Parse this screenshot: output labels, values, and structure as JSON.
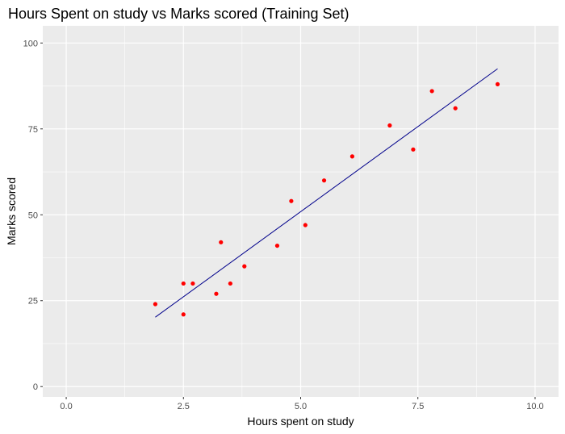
{
  "chart_data": {
    "type": "scatter",
    "title": "Hours Spent on study vs Marks scored (Training Set)",
    "xlabel": "Hours spent on study",
    "ylabel": "Marks scored",
    "xlim": [
      -0.5,
      10.5
    ],
    "ylim": [
      -3,
      105
    ],
    "x_ticks": [
      0,
      2.5,
      5,
      7.5,
      10
    ],
    "x_tick_labels": [
      "0.0",
      "2.5",
      "5.0",
      "7.5",
      "10.0"
    ],
    "y_ticks": [
      0,
      25,
      50,
      75,
      100
    ],
    "y_tick_labels": [
      "0",
      "25",
      "50",
      "75",
      "100"
    ],
    "grid": true,
    "background": "#ebebeb",
    "grid_color": "#ffffff",
    "points": [
      {
        "x": 1.9,
        "y": 24
      },
      {
        "x": 2.5,
        "y": 21
      },
      {
        "x": 2.5,
        "y": 30
      },
      {
        "x": 2.7,
        "y": 30
      },
      {
        "x": 3.2,
        "y": 27
      },
      {
        "x": 3.3,
        "y": 42
      },
      {
        "x": 3.5,
        "y": 30
      },
      {
        "x": 3.8,
        "y": 35
      },
      {
        "x": 4.5,
        "y": 41
      },
      {
        "x": 4.8,
        "y": 54
      },
      {
        "x": 5.1,
        "y": 47
      },
      {
        "x": 5.5,
        "y": 60
      },
      {
        "x": 6.1,
        "y": 67
      },
      {
        "x": 6.9,
        "y": 76
      },
      {
        "x": 7.4,
        "y": 69
      },
      {
        "x": 7.8,
        "y": 86
      },
      {
        "x": 8.3,
        "y": 81
      },
      {
        "x": 9.2,
        "y": 88
      }
    ],
    "point_color": "#ff0000",
    "regression_line": {
      "x1": 1.9,
      "y1": 20.2,
      "x2": 9.2,
      "y2": 92.5
    },
    "line_color": "#00008b"
  }
}
